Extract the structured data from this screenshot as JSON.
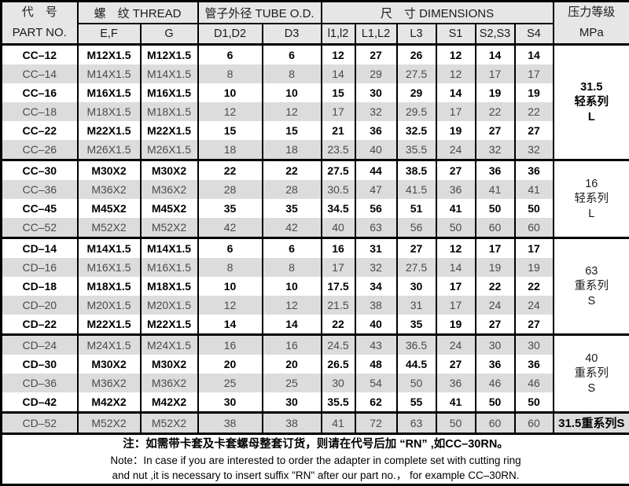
{
  "header": {
    "part_no_cn": "代　号",
    "part_no_en": "PART NO.",
    "thread": "螺　纹  THREAD",
    "tube_od": "管子外径 TUBE O.D.",
    "dimensions": "尺　寸  DIMENSIONS",
    "pressure_cn": "压力等级",
    "pressure_unit": "MPa",
    "subcols": [
      "E,F",
      "G",
      "D1,D2",
      "D3",
      "l1,l2",
      "L1,L2",
      "L3",
      "S1",
      "S2,S3",
      "S4"
    ]
  },
  "rows": [
    {
      "part": "CC–12",
      "ef": "M12X1.5",
      "g": "M12X1.5",
      "d12": "6",
      "d3": "6",
      "l12": "12",
      "L12": "27",
      "L3": "26",
      "s1": "12",
      "s23": "14",
      "s4": "14"
    },
    {
      "part": "CC–14",
      "ef": "M14X1.5",
      "g": "M14X1.5",
      "d12": "8",
      "d3": "8",
      "l12": "14",
      "L12": "29",
      "L3": "27.5",
      "s1": "12",
      "s23": "17",
      "s4": "17"
    },
    {
      "part": "CC–16",
      "ef": "M16X1.5",
      "g": "M16X1.5",
      "d12": "10",
      "d3": "10",
      "l12": "15",
      "L12": "30",
      "L3": "29",
      "s1": "14",
      "s23": "19",
      "s4": "19"
    },
    {
      "part": "CC–18",
      "ef": "M18X1.5",
      "g": "M18X1.5",
      "d12": "12",
      "d3": "12",
      "l12": "17",
      "L12": "32",
      "L3": "29.5",
      "s1": "17",
      "s23": "22",
      "s4": "22"
    },
    {
      "part": "CC–22",
      "ef": "M22X1.5",
      "g": "M22X1.5",
      "d12": "15",
      "d3": "15",
      "l12": "21",
      "L12": "36",
      "L3": "32.5",
      "s1": "19",
      "s23": "27",
      "s4": "27"
    },
    {
      "part": "CC–26",
      "ef": "M26X1.5",
      "g": "M26X1.5",
      "d12": "18",
      "d3": "18",
      "l12": "23.5",
      "L12": "40",
      "L3": "35.5",
      "s1": "24",
      "s23": "32",
      "s4": "32"
    },
    {
      "part": "CC–30",
      "ef": "M30X2",
      "g": "M30X2",
      "d12": "22",
      "d3": "22",
      "l12": "27.5",
      "L12": "44",
      "L3": "38.5",
      "s1": "27",
      "s23": "36",
      "s4": "36"
    },
    {
      "part": "CC–36",
      "ef": "M36X2",
      "g": "M36X2",
      "d12": "28",
      "d3": "28",
      "l12": "30.5",
      "L12": "47",
      "L3": "41.5",
      "s1": "36",
      "s23": "41",
      "s4": "41"
    },
    {
      "part": "CC–45",
      "ef": "M45X2",
      "g": "M45X2",
      "d12": "35",
      "d3": "35",
      "l12": "34.5",
      "L12": "56",
      "L3": "51",
      "s1": "41",
      "s23": "50",
      "s4": "50"
    },
    {
      "part": "CC–52",
      "ef": "M52X2",
      "g": "M52X2",
      "d12": "42",
      "d3": "42",
      "l12": "40",
      "L12": "63",
      "L3": "56",
      "s1": "50",
      "s23": "60",
      "s4": "60"
    },
    {
      "part": "CD–14",
      "ef": "M14X1.5",
      "g": "M14X1.5",
      "d12": "6",
      "d3": "6",
      "l12": "16",
      "L12": "31",
      "L3": "27",
      "s1": "12",
      "s23": "17",
      "s4": "17"
    },
    {
      "part": "CD–16",
      "ef": "M16X1.5",
      "g": "M16X1.5",
      "d12": "8",
      "d3": "8",
      "l12": "17",
      "L12": "32",
      "L3": "27.5",
      "s1": "14",
      "s23": "19",
      "s4": "19"
    },
    {
      "part": "CD–18",
      "ef": "M18X1.5",
      "g": "M18X1.5",
      "d12": "10",
      "d3": "10",
      "l12": "17.5",
      "L12": "34",
      "L3": "30",
      "s1": "17",
      "s23": "22",
      "s4": "22"
    },
    {
      "part": "CD–20",
      "ef": "M20X1.5",
      "g": "M20X1.5",
      "d12": "12",
      "d3": "12",
      "l12": "21.5",
      "L12": "38",
      "L3": "31",
      "s1": "17",
      "s23": "24",
      "s4": "24"
    },
    {
      "part": "CD–22",
      "ef": "M22X1.5",
      "g": "M22X1.5",
      "d12": "14",
      "d3": "14",
      "l12": "22",
      "L12": "40",
      "L3": "35",
      "s1": "19",
      "s23": "27",
      "s4": "27"
    },
    {
      "part": "CD–24",
      "ef": "M24X1.5",
      "g": "M24X1.5",
      "d12": "16",
      "d3": "16",
      "l12": "24.5",
      "L12": "43",
      "L3": "36.5",
      "s1": "24",
      "s23": "30",
      "s4": "30"
    },
    {
      "part": "CD–30",
      "ef": "M30X2",
      "g": "M30X2",
      "d12": "20",
      "d3": "20",
      "l12": "26.5",
      "L12": "48",
      "L3": "44.5",
      "s1": "27",
      "s23": "36",
      "s4": "36"
    },
    {
      "part": "CD–36",
      "ef": "M36X2",
      "g": "M36X2",
      "d12": "25",
      "d3": "25",
      "l12": "30",
      "L12": "54",
      "L3": "50",
      "s1": "36",
      "s23": "46",
      "s4": "46"
    },
    {
      "part": "CD–42",
      "ef": "M42X2",
      "g": "M42X2",
      "d12": "30",
      "d3": "30",
      "l12": "35.5",
      "L12": "62",
      "L3": "55",
      "s1": "41",
      "s23": "50",
      "s4": "50"
    },
    {
      "part": "CD–52",
      "ef": "M52X2",
      "g": "M52X2",
      "d12": "38",
      "d3": "38",
      "l12": "41",
      "L12": "72",
      "L3": "63",
      "s1": "50",
      "s23": "60",
      "s4": "60"
    }
  ],
  "pressure_groups": [
    {
      "rows": 6,
      "lines": [
        "31.5",
        "轻系列",
        "L"
      ],
      "bold": true
    },
    {
      "rows": 4,
      "lines": [
        "16",
        "轻系列",
        "L"
      ],
      "bold": false
    },
    {
      "rows": 5,
      "lines": [
        "63",
        "重系列",
        "S"
      ],
      "bold": false
    },
    {
      "rows": 4,
      "lines": [
        "40",
        "重系列",
        "S"
      ],
      "bold": false
    },
    {
      "rows": 1,
      "lines": [
        "31.5重系列S"
      ],
      "bold": true
    }
  ],
  "note": {
    "line1": "注：如需带卡套及卡套螺母整套订货，则请在代号后加 “RN” ,如CC–30RN。",
    "line2": "Note：In case if you are interested to order the adapter in complete set with cutting ring",
    "line3": "and nut ,it is necessary to insert suffix \"RN\" after our part no.，  for example CC–30RN."
  },
  "colors": {
    "border": "#000000",
    "header_bg": "#e6e6e6",
    "row_gray_bg": "#dcdcdc",
    "row_white_bg": "#ffffff",
    "gray_text": "#4a4a4a",
    "bold_text": "#000000"
  }
}
